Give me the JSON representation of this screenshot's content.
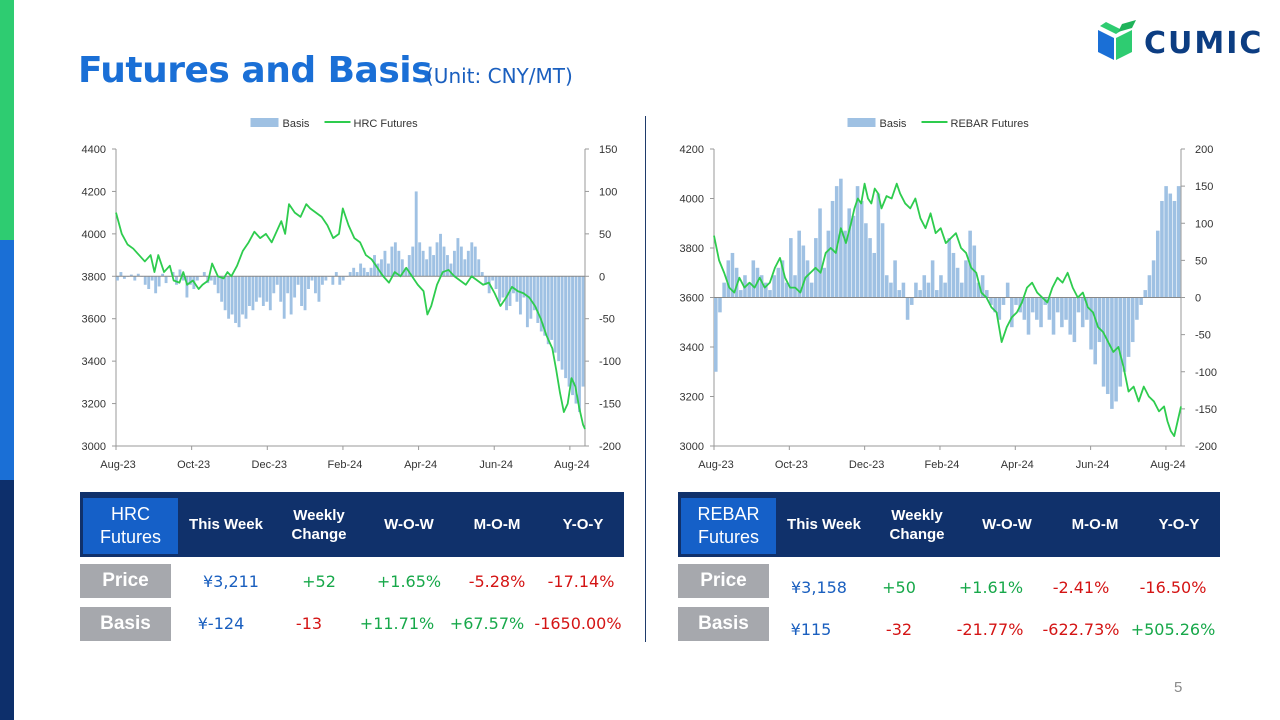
{
  "title": "Futures and Basis",
  "unit": "(Unit: CNY/MT)",
  "logo": {
    "text": "CUMIC",
    "color": "#0c3d82"
  },
  "page_number": "5",
  "colors": {
    "basis": "#9fc1e3",
    "futures": "#2ecc4e",
    "title": "#1a6fd6",
    "header": "#10316b",
    "positive": "#17a84a",
    "negative": "#d41414"
  },
  "chart_data": [
    {
      "type": "bar+line",
      "legend": [
        "Basis",
        "HRC Futures"
      ],
      "legend_position": "top-center",
      "x_ticks": [
        "Aug-23",
        "Oct-23",
        "Dec-23",
        "Feb-24",
        "Apr-24",
        "Jun-24",
        "Aug-24"
      ],
      "y_left_ticks": [
        "4400",
        "4200",
        "4000",
        "3800",
        "3600",
        "3400",
        "3200",
        "3000"
      ],
      "y_right_ticks": [
        "150",
        "100",
        "50",
        "0",
        "-50",
        "-100",
        "-150",
        "-200"
      ],
      "ylim_left": [
        3000,
        4400
      ],
      "ylim_right": [
        -200,
        150
      ],
      "futures_label": "HRC Futures",
      "futures_points": [
        [
          0,
          4100
        ],
        [
          3,
          4000
        ],
        [
          6,
          3950
        ],
        [
          9,
          3930
        ],
        [
          12,
          3900
        ],
        [
          15,
          3870
        ],
        [
          18,
          3900
        ],
        [
          20,
          3820
        ],
        [
          22,
          3900
        ],
        [
          25,
          3820
        ],
        [
          28,
          3850
        ],
        [
          30,
          3780
        ],
        [
          33,
          3770
        ],
        [
          35,
          3820
        ],
        [
          37,
          3760
        ],
        [
          40,
          3780
        ],
        [
          43,
          3740
        ],
        [
          45,
          3760
        ],
        [
          48,
          3780
        ],
        [
          50,
          3860
        ],
        [
          53,
          3800
        ],
        [
          56,
          3790
        ],
        [
          58,
          3820
        ],
        [
          60,
          3800
        ],
        [
          63,
          3850
        ],
        [
          66,
          3920
        ],
        [
          69,
          3960
        ],
        [
          72,
          4010
        ],
        [
          75,
          3980
        ],
        [
          78,
          4000
        ],
        [
          81,
          3960
        ],
        [
          84,
          4020
        ],
        [
          86,
          4060
        ],
        [
          88,
          4000
        ],
        [
          90,
          4140
        ],
        [
          93,
          4100
        ],
        [
          96,
          4080
        ],
        [
          99,
          4140
        ],
        [
          101,
          4120
        ],
        [
          104,
          4100
        ],
        [
          107,
          4080
        ],
        [
          110,
          4040
        ],
        [
          113,
          3980
        ],
        [
          116,
          4000
        ],
        [
          118,
          4120
        ],
        [
          121,
          4040
        ],
        [
          124,
          3980
        ],
        [
          127,
          3960
        ],
        [
          130,
          3900
        ],
        [
          133,
          3880
        ],
        [
          136,
          3840
        ],
        [
          139,
          3800
        ],
        [
          142,
          3770
        ],
        [
          145,
          3820
        ],
        [
          148,
          3800
        ],
        [
          151,
          3840
        ],
        [
          154,
          3800
        ],
        [
          157,
          3760
        ],
        [
          160,
          3730
        ],
        [
          162,
          3620
        ],
        [
          164,
          3660
        ],
        [
          167,
          3760
        ],
        [
          170,
          3820
        ],
        [
          173,
          3830
        ],
        [
          176,
          3800
        ],
        [
          179,
          3780
        ],
        [
          182,
          3760
        ],
        [
          185,
          3800
        ],
        [
          188,
          3780
        ],
        [
          191,
          3760
        ],
        [
          194,
          3770
        ],
        [
          197,
          3720
        ],
        [
          200,
          3660
        ],
        [
          203,
          3700
        ],
        [
          206,
          3750
        ],
        [
          209,
          3730
        ],
        [
          212,
          3720
        ],
        [
          215,
          3700
        ],
        [
          218,
          3660
        ],
        [
          221,
          3600
        ],
        [
          224,
          3520
        ],
        [
          227,
          3460
        ],
        [
          229,
          3360
        ],
        [
          231,
          3250
        ],
        [
          233,
          3160
        ],
        [
          235,
          3200
        ],
        [
          237,
          3320
        ],
        [
          239,
          3280
        ],
        [
          241,
          3180
        ],
        [
          243,
          3100
        ],
        [
          244,
          3080
        ]
      ],
      "basis_values": [
        -5,
        5,
        -3,
        0,
        2,
        -5,
        3,
        0,
        -10,
        -15,
        -5,
        -20,
        -12,
        3,
        -8,
        0,
        5,
        -10,
        8,
        -5,
        -25,
        -10,
        -15,
        -5,
        0,
        5,
        -8,
        -5,
        -10,
        -20,
        -30,
        -40,
        -50,
        -45,
        -55,
        -60,
        -45,
        -50,
        -35,
        -40,
        -30,
        -25,
        -35,
        -30,
        -40,
        -20,
        -10,
        -30,
        -50,
        -20,
        -45,
        -25,
        -10,
        -35,
        -40,
        -15,
        -5,
        -20,
        -30,
        -10,
        -5,
        0,
        -10,
        5,
        -10,
        -5,
        0,
        5,
        10,
        5,
        15,
        10,
        5,
        10,
        25,
        15,
        20,
        30,
        15,
        35,
        40,
        30,
        20,
        10,
        25,
        35,
        100,
        40,
        30,
        20,
        35,
        25,
        40,
        50,
        35,
        25,
        15,
        30,
        45,
        35,
        20,
        30,
        40,
        35,
        20,
        5,
        -10,
        -20,
        -5,
        -15,
        -30,
        -25,
        -40,
        -35,
        -20,
        -30,
        -45,
        -25,
        -60,
        -50,
        -40,
        -55,
        -65,
        -70,
        -80,
        -75,
        -90,
        -100,
        -110,
        -120,
        -130,
        -140,
        -150,
        -160,
        -130
      ],
      "basis_start_x": 0
    },
    {
      "type": "bar+line",
      "legend": [
        "Basis",
        "REBAR Futures"
      ],
      "legend_position": "top-center",
      "x_ticks": [
        "Aug-23",
        "Oct-23",
        "Dec-23",
        "Feb-24",
        "Apr-24",
        "Jun-24",
        "Aug-24"
      ],
      "y_left_ticks": [
        "4200",
        "4000",
        "3800",
        "3600",
        "3400",
        "3200",
        "3000"
      ],
      "y_right_ticks": [
        "200",
        "150",
        "100",
        "50",
        "0",
        "-50",
        "-100",
        "-150",
        "-200"
      ],
      "ylim_left": [
        3000,
        4200
      ],
      "ylim_right": [
        -200,
        200
      ],
      "futures_label": "REBAR Futures",
      "futures_points": [
        [
          0,
          3850
        ],
        [
          3,
          3750
        ],
        [
          6,
          3700
        ],
        [
          9,
          3640
        ],
        [
          12,
          3620
        ],
        [
          15,
          3680
        ],
        [
          18,
          3640
        ],
        [
          21,
          3660
        ],
        [
          24,
          3640
        ],
        [
          27,
          3680
        ],
        [
          30,
          3640
        ],
        [
          33,
          3660
        ],
        [
          36,
          3720
        ],
        [
          39,
          3760
        ],
        [
          42,
          3680
        ],
        [
          45,
          3640
        ],
        [
          48,
          3640
        ],
        [
          51,
          3620
        ],
        [
          54,
          3680
        ],
        [
          57,
          3700
        ],
        [
          60,
          3720
        ],
        [
          63,
          3700
        ],
        [
          66,
          3780
        ],
        [
          69,
          3800
        ],
        [
          72,
          3780
        ],
        [
          75,
          3880
        ],
        [
          78,
          3820
        ],
        [
          81,
          3900
        ],
        [
          83,
          3960
        ],
        [
          85,
          4000
        ],
        [
          87,
          3980
        ],
        [
          89,
          4060
        ],
        [
          91,
          4000
        ],
        [
          93,
          3980
        ],
        [
          95,
          4040
        ],
        [
          97,
          4020
        ],
        [
          99,
          3960
        ],
        [
          102,
          4010
        ],
        [
          105,
          4000
        ],
        [
          108,
          4060
        ],
        [
          110,
          4020
        ],
        [
          113,
          3980
        ],
        [
          116,
          3960
        ],
        [
          119,
          4000
        ],
        [
          122,
          3920
        ],
        [
          125,
          3880
        ],
        [
          128,
          3940
        ],
        [
          131,
          3860
        ],
        [
          134,
          3880
        ],
        [
          137,
          3820
        ],
        [
          140,
          3840
        ],
        [
          143,
          3860
        ],
        [
          146,
          3800
        ],
        [
          149,
          3780
        ],
        [
          152,
          3720
        ],
        [
          155,
          3700
        ],
        [
          158,
          3620
        ],
        [
          161,
          3600
        ],
        [
          164,
          3560
        ],
        [
          167,
          3540
        ],
        [
          170,
          3420
        ],
        [
          173,
          3480
        ],
        [
          176,
          3520
        ],
        [
          179,
          3540
        ],
        [
          182,
          3580
        ],
        [
          185,
          3640
        ],
        [
          188,
          3660
        ],
        [
          191,
          3620
        ],
        [
          194,
          3600
        ],
        [
          197,
          3580
        ],
        [
          200,
          3640
        ],
        [
          203,
          3680
        ],
        [
          206,
          3660
        ],
        [
          209,
          3700
        ],
        [
          212,
          3640
        ],
        [
          215,
          3600
        ],
        [
          218,
          3620
        ],
        [
          221,
          3560
        ],
        [
          224,
          3540
        ],
        [
          227,
          3480
        ],
        [
          230,
          3460
        ],
        [
          233,
          3420
        ],
        [
          236,
          3380
        ],
        [
          239,
          3400
        ],
        [
          242,
          3320
        ],
        [
          245,
          3220
        ],
        [
          248,
          3240
        ],
        [
          251,
          3180
        ],
        [
          254,
          3240
        ],
        [
          257,
          3200
        ],
        [
          260,
          3180
        ],
        [
          263,
          3140
        ],
        [
          266,
          3160
        ],
        [
          268,
          3100
        ],
        [
          269,
          3080
        ],
        [
          270,
          3060
        ],
        [
          272,
          3040
        ],
        [
          274,
          3100
        ],
        [
          276,
          3160
        ]
      ],
      "basis_values": [
        -100,
        -20,
        20,
        50,
        60,
        40,
        10,
        30,
        20,
        50,
        40,
        30,
        20,
        10,
        30,
        40,
        50,
        20,
        80,
        30,
        90,
        70,
        50,
        20,
        80,
        120,
        40,
        90,
        130,
        150,
        160,
        90,
        120,
        110,
        150,
        130,
        100,
        80,
        60,
        140,
        100,
        30,
        20,
        50,
        10,
        20,
        -30,
        -10,
        20,
        10,
        30,
        20,
        50,
        10,
        30,
        20,
        80,
        60,
        40,
        20,
        50,
        90,
        70,
        20,
        30,
        10,
        -10,
        -20,
        -30,
        -10,
        20,
        -40,
        -10,
        -20,
        -30,
        -50,
        -20,
        -30,
        -40,
        -10,
        -30,
        -50,
        -20,
        -40,
        -30,
        -50,
        -60,
        -20,
        -40,
        -30,
        -70,
        -90,
        -60,
        -120,
        -130,
        -150,
        -140,
        -120,
        -100,
        -80,
        -60,
        -30,
        -10,
        10,
        30,
        50,
        90,
        130,
        150,
        140,
        130,
        150
      ],
      "basis_start_x": 0
    }
  ],
  "hrc_table": {
    "name": "HRC Futures",
    "name_line1": "HRC",
    "name_line2": "Futures",
    "headers": {
      "this_week": "This Week",
      "weekly_change_1": "Weekly",
      "weekly_change_2": "Change",
      "wow": "W-O-W",
      "mom": "M-O-M",
      "yoy": "Y-O-Y"
    },
    "price": {
      "label": "Price",
      "this_week": "¥3,211",
      "weekly_change": "+52",
      "wow": "+1.65%",
      "mom": "-5.28%",
      "yoy": "-17.14%"
    },
    "basis": {
      "label": "Basis",
      "this_week": "¥-124",
      "weekly_change": "-13",
      "wow": "+11.71%",
      "mom": "+67.57%",
      "yoy": "-1650.00%"
    }
  },
  "rebar_table": {
    "name": "REBAR Futures",
    "name_line1": "REBAR",
    "name_line2": "Futures",
    "headers": {
      "this_week": "This Week",
      "weekly_change_1": "Weekly",
      "weekly_change_2": "Change",
      "wow": "W-O-W",
      "mom": "M-O-M",
      "yoy": "Y-O-Y"
    },
    "price": {
      "label": "Price",
      "this_week": "¥3,158",
      "weekly_change": "+50",
      "wow": "+1.61%",
      "mom": "-2.41%",
      "yoy": "-16.50%"
    },
    "basis": {
      "label": "Basis",
      "this_week": "¥115",
      "weekly_change": "-32",
      "wow": "-21.77%",
      "mom": "-622.73%",
      "yoy": "+505.26%"
    }
  }
}
